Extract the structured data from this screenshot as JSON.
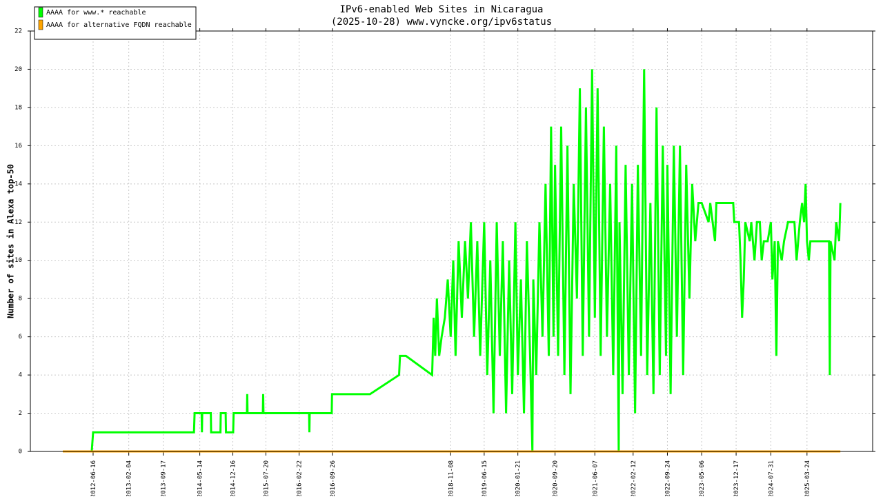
{
  "chart_data": {
    "type": "line",
    "title": "IPv6-enabled Web Sites in Nicaragua",
    "subtitle": "(2025-10-28) www.vyncke.org/ipv6status",
    "y_label": "Number of sites in Alexa top-50",
    "xlim": [
      "2011-05-03",
      "2026-05-27"
    ],
    "xticks": [
      "2012-06-16",
      "2013-02-04",
      "2013-09-17",
      "2014-05-14",
      "2014-12-16",
      "2015-07-20",
      "2016-02-22",
      "2016-09-26",
      "2018-11-08",
      "2019-06-15",
      "2020-01-21",
      "2020-09-20",
      "2021-06-07",
      "2022-02-12",
      "2022-09-24",
      "2023-05-06",
      "2023-12-17",
      "2024-07-31",
      "2025-03-24"
    ],
    "ylim": [
      0,
      22
    ],
    "yticks": [
      0,
      2,
      4,
      6,
      8,
      10,
      12,
      14,
      16,
      18,
      20,
      22
    ],
    "grid": true,
    "legend": "top-left",
    "series": [
      {
        "name": "AAAA for www.* reachable",
        "color": "#00ff00",
        "x": [
          "2011-12-01",
          "2012-06-07",
          "2012-06-16",
          "2014-04-06",
          "2014-04-10",
          "2014-05-26",
          "2014-05-28",
          "2014-05-30",
          "2014-07-25",
          "2014-07-27",
          "2014-09-26",
          "2014-09-28",
          "2014-10-30",
          "2014-11-01",
          "2014-12-18",
          "2014-12-21",
          "2015-03-18",
          "2015-03-20",
          "2015-03-22",
          "2015-06-30",
          "2015-07-02",
          "2015-07-04",
          "2016-04-27",
          "2016-04-29",
          "2016-05-01",
          "2016-09-22",
          "2016-09-24",
          "2017-05-30",
          "2017-12-06",
          "2017-12-12",
          "2018-01-20",
          "2018-07-10",
          "2018-07-20",
          "2018-07-30",
          "2018-08-10",
          "2018-08-25",
          "2018-09-10",
          "2018-10-01",
          "2018-10-20",
          "2018-11-08",
          "2018-11-25",
          "2018-12-10",
          "2018-12-30",
          "2019-01-20",
          "2019-02-10",
          "2019-03-01",
          "2019-03-20",
          "2019-04-10",
          "2019-05-01",
          "2019-05-20",
          "2019-06-15",
          "2019-07-05",
          "2019-07-25",
          "2019-08-15",
          "2019-09-05",
          "2019-09-25",
          "2019-10-15",
          "2019-11-05",
          "2019-11-25",
          "2019-12-15",
          "2020-01-05",
          "2020-01-21",
          "2020-02-10",
          "2020-03-01",
          "2020-03-20",
          "2020-04-10",
          "2020-04-25",
          "2020-05-01",
          "2020-05-20",
          "2020-06-10",
          "2020-06-30",
          "2020-07-20",
          "2020-08-10",
          "2020-08-25",
          "2020-09-10",
          "2020-09-20",
          "2020-10-10",
          "2020-10-30",
          "2020-11-20",
          "2020-12-10",
          "2020-12-30",
          "2021-01-20",
          "2021-02-10",
          "2021-03-01",
          "2021-03-20",
          "2021-04-10",
          "2021-04-30",
          "2021-05-20",
          "2021-06-07",
          "2021-06-25",
          "2021-07-15",
          "2021-08-05",
          "2021-08-25",
          "2021-09-15",
          "2021-10-05",
          "2021-10-25",
          "2021-11-10",
          "2021-11-15",
          "2021-12-05",
          "2021-12-25",
          "2022-01-15",
          "2022-02-05",
          "2022-02-25",
          "2022-03-15",
          "2022-04-05",
          "2022-04-25",
          "2022-05-15",
          "2022-06-05",
          "2022-06-25",
          "2022-07-15",
          "2022-08-05",
          "2022-08-25",
          "2022-09-15",
          "2022-09-24",
          "2022-10-15",
          "2022-11-05",
          "2022-11-25",
          "2022-12-15",
          "2023-01-05",
          "2023-01-25",
          "2023-02-15",
          "2023-03-05",
          "2023-03-25",
          "2023-04-15",
          "2023-05-06",
          "2023-06-20",
          "2023-07-01",
          "2023-08-01",
          "2023-08-10",
          "2023-11-28",
          "2023-12-05",
          "2024-01-05",
          "2024-01-15",
          "2024-01-25",
          "2024-02-05",
          "2024-02-15",
          "2024-03-15",
          "2024-03-25",
          "2024-04-15",
          "2024-05-01",
          "2024-05-20",
          "2024-06-01",
          "2024-06-15",
          "2024-07-10",
          "2024-07-31",
          "2024-08-10",
          "2024-08-25",
          "2024-09-05",
          "2024-09-15",
          "2024-10-10",
          "2024-10-25",
          "2024-11-20",
          "2025-01-01",
          "2025-01-15",
          "2025-02-05",
          "2025-02-20",
          "2025-03-05",
          "2025-03-15",
          "2025-03-24",
          "2025-04-05",
          "2025-04-15",
          "2025-08-15",
          "2025-08-20",
          "2025-08-25",
          "2025-09-20",
          "2025-10-01",
          "2025-10-20",
          "2025-10-28"
        ],
        "values": [
          0,
          0,
          1,
          1,
          2,
          2,
          1,
          2,
          2,
          1,
          1,
          2,
          2,
          1,
          1,
          2,
          2,
          3,
          2,
          2,
          3,
          2,
          2,
          1,
          2,
          2,
          3,
          3,
          4,
          5,
          5,
          4,
          7,
          5,
          8,
          5,
          6,
          7,
          9,
          6,
          10,
          5,
          11,
          7,
          11,
          8,
          12,
          6,
          11,
          5,
          12,
          4,
          10,
          2,
          12,
          5,
          11,
          2,
          10,
          3,
          12,
          4,
          9,
          2,
          11,
          5,
          0,
          9,
          4,
          12,
          6,
          14,
          5,
          17,
          6,
          15,
          5,
          17,
          4,
          16,
          3,
          14,
          8,
          19,
          5,
          18,
          6,
          20,
          7,
          19,
          5,
          17,
          6,
          14,
          4,
          16,
          0,
          12,
          3,
          15,
          4,
          14,
          2,
          15,
          5,
          20,
          4,
          13,
          3,
          18,
          4,
          16,
          5,
          15,
          3,
          16,
          6,
          16,
          4,
          15,
          8,
          14,
          11,
          13,
          13,
          12,
          13,
          11,
          13,
          13,
          12,
          12,
          10,
          7,
          9,
          12,
          11,
          12,
          10,
          12,
          12,
          10,
          11,
          11,
          12,
          9,
          11,
          5,
          11,
          10,
          11,
          12,
          12,
          10,
          12,
          13,
          12,
          14,
          11,
          10,
          11,
          11,
          4,
          11,
          10,
          12,
          11,
          13
        ]
      },
      {
        "name": "AAAA for alternative FQDN reachable",
        "color": "#ffa500",
        "x": [
          "2011-12-01",
          "2025-10-28"
        ],
        "values": [
          0,
          0
        ]
      }
    ]
  }
}
